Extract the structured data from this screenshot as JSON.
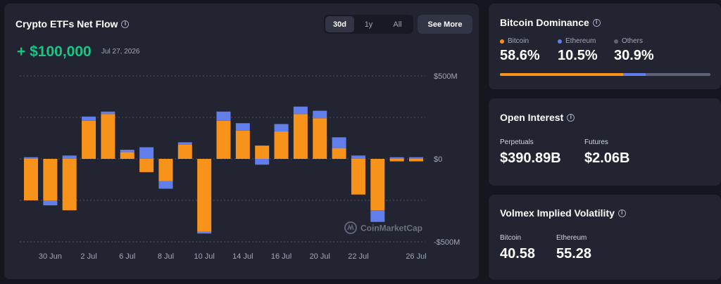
{
  "flow": {
    "title": "Crypto ETFs Net Flow",
    "value": "+ $100,000",
    "date": "Jul 27, 2026",
    "ranges": [
      "30d",
      "1y",
      "All"
    ],
    "active_range": "30d",
    "see_more": "See More",
    "watermark": "CoinMarketCap"
  },
  "chart_data": {
    "type": "bar",
    "stacked": true,
    "ylim": [
      -500,
      500
    ],
    "y_unit": "M",
    "y_ticks": [
      "$500M",
      "$0",
      "-$500M"
    ],
    "x_tick_labels": [
      "30 Jun",
      "2 Jul",
      "6 Jul",
      "8 Jul",
      "10 Jul",
      "14 Jul",
      "16 Jul",
      "20 Jul",
      "22 Jul",
      "26 Jul"
    ],
    "x_tick_index": [
      1,
      3,
      5,
      7,
      9,
      11,
      13,
      15,
      17,
      20
    ],
    "categories": [
      "d1",
      "d2",
      "d3",
      "d4",
      "d5",
      "d6",
      "d7",
      "d8",
      "d9",
      "d10",
      "d11",
      "d12",
      "d13",
      "d14",
      "d15",
      "d16",
      "d17",
      "d18",
      "d19",
      "d20",
      "d21"
    ],
    "series": [
      {
        "color": "#f7931a",
        "values": [
          -250,
          -250,
          -310,
          230,
          270,
          40,
          -80,
          -135,
          85,
          -440,
          230,
          170,
          80,
          165,
          270,
          245,
          65,
          -215,
          -310,
          -15,
          -15
        ]
      },
      {
        "color": "#627eea",
        "values": [
          10,
          -30,
          20,
          25,
          15,
          15,
          70,
          -45,
          15,
          -10,
          55,
          45,
          -35,
          45,
          45,
          45,
          65,
          20,
          -70,
          10,
          10
        ]
      }
    ]
  },
  "dominance": {
    "title": "Bitcoin Dominance",
    "items": [
      {
        "label": "Bitcoin",
        "value": "58.6%",
        "color": "#f7931a",
        "pct": 58.6
      },
      {
        "label": "Ethereum",
        "value": "10.5%",
        "color": "#627eea",
        "pct": 10.5
      },
      {
        "label": "Others",
        "value": "30.9%",
        "color": "#5f6377",
        "pct": 30.9
      }
    ]
  },
  "open_interest": {
    "title": "Open Interest",
    "perpetuals_label": "Perpetuals",
    "perpetuals_value": "$390.89B",
    "futures_label": "Futures",
    "futures_value": "$2.06B"
  },
  "volatility": {
    "title": "Volmex Implied Volatility",
    "bitcoin_label": "Bitcoin",
    "bitcoin_value": "40.58",
    "ethereum_label": "Ethereum",
    "ethereum_value": "55.28"
  }
}
